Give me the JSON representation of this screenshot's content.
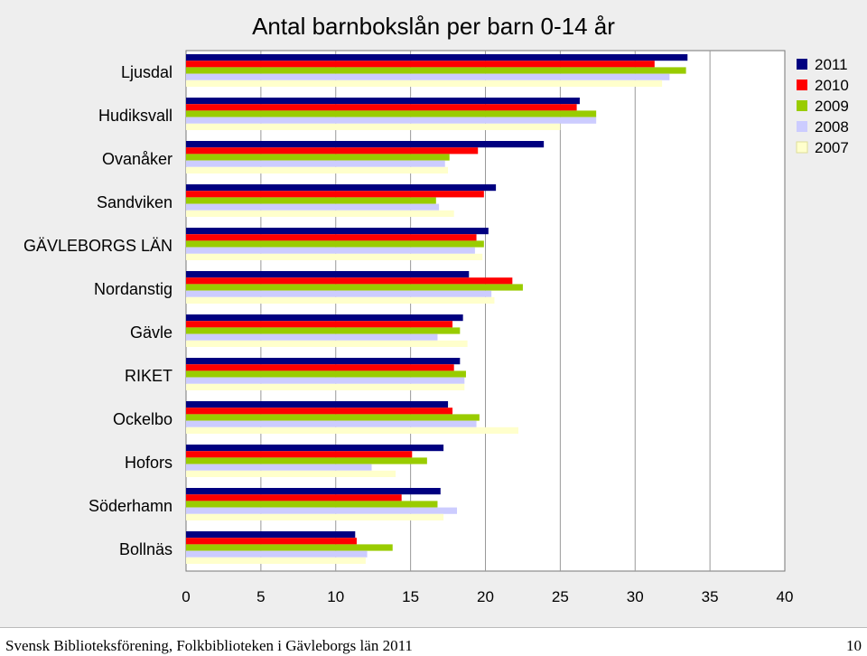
{
  "chart_data": {
    "type": "bar",
    "orientation": "horizontal",
    "title": "Antal barnbokslån per barn 0-14 år",
    "categories": [
      "Ljusdal",
      "Hudiksvall",
      "Ovanåker",
      "Sandviken",
      "GÄVLEBORGS LÄN",
      "Nordanstig",
      "Gävle",
      "RIKET",
      "Ockelbo",
      "Hofors",
      "Söderhamn",
      "Bollnäs"
    ],
    "series": [
      {
        "name": "2011",
        "color": "#000080",
        "values": [
          33.5,
          26.3,
          23.9,
          20.7,
          20.2,
          18.9,
          18.5,
          18.3,
          17.5,
          17.2,
          17.0,
          11.3
        ]
      },
      {
        "name": "2010",
        "color": "#ff0000",
        "values": [
          31.3,
          26.1,
          19.5,
          19.9,
          19.4,
          21.8,
          17.8,
          17.9,
          17.8,
          15.1,
          14.4,
          11.4
        ]
      },
      {
        "name": "2009",
        "color": "#99cc00",
        "values": [
          33.4,
          27.4,
          17.6,
          16.7,
          19.9,
          22.5,
          18.3,
          18.7,
          19.6,
          16.1,
          16.8,
          13.8
        ]
      },
      {
        "name": "2008",
        "color": "#ccccff",
        "values": [
          32.3,
          27.4,
          17.3,
          16.9,
          19.3,
          20.4,
          16.8,
          18.6,
          19.4,
          12.4,
          18.1,
          12.1
        ]
      },
      {
        "name": "2007",
        "color": "#ffffcc",
        "values": [
          31.8,
          25.0,
          17.5,
          17.9,
          19.8,
          20.6,
          18.8,
          18.6,
          22.2,
          14.0,
          17.2,
          12.0
        ]
      }
    ],
    "xlim": [
      0,
      40
    ],
    "xticks": [
      "0",
      "5",
      "10",
      "15",
      "20",
      "25",
      "30",
      "35",
      "40"
    ],
    "grid": true,
    "legend_position": "top-right"
  },
  "footer": {
    "source": "Svensk Biblioteksförening, Folkbiblioteken i Gävleborgs län 2011",
    "page_number": "10"
  }
}
